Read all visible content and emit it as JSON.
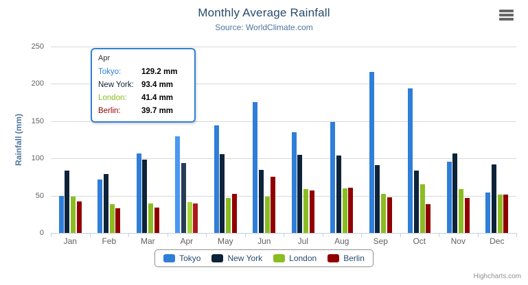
{
  "header": {
    "title": "Monthly Average Rainfall",
    "subtitle": "Source: WorldClimate.com"
  },
  "credits": {
    "label": "Highcharts.com"
  },
  "context_menu": {
    "icon": "hamburger-menu-icon"
  },
  "chart_data": {
    "type": "bar",
    "orientation": "vertical-columns",
    "title": "Monthly Average Rainfall",
    "subtitle": "Source: WorldClimate.com",
    "categories": [
      "Jan",
      "Feb",
      "Mar",
      "Apr",
      "May",
      "Jun",
      "Jul",
      "Aug",
      "Sep",
      "Oct",
      "Nov",
      "Dec"
    ],
    "series": [
      {
        "name": "Tokyo",
        "color": "#2f7ed8",
        "hover_color": "#4a98f2",
        "values": [
          49.9,
          71.5,
          106.4,
          129.2,
          144.0,
          176.0,
          135.6,
          148.5,
          216.4,
          194.1,
          95.6,
          54.4
        ]
      },
      {
        "name": "New York",
        "color": "#0d233a",
        "hover_color": "#273d54",
        "values": [
          83.6,
          78.8,
          98.5,
          93.4,
          106.0,
          84.5,
          105.0,
          104.3,
          91.2,
          83.5,
          106.6,
          92.3
        ]
      },
      {
        "name": "London",
        "color": "#8bbc21",
        "hover_color": "#a5d63b",
        "values": [
          48.9,
          38.8,
          39.3,
          41.4,
          47.0,
          48.3,
          59.0,
          59.6,
          52.4,
          65.2,
          59.3,
          51.2
        ]
      },
      {
        "name": "Berlin",
        "color": "#910000",
        "hover_color": "#ab1a1a",
        "values": [
          42.4,
          33.2,
          34.5,
          39.7,
          52.6,
          75.5,
          57.4,
          60.4,
          47.6,
          39.1,
          46.8,
          51.1
        ]
      }
    ],
    "xlabel": "",
    "ylabel": "Rainfall (mm)",
    "ylim": [
      0,
      250
    ],
    "yticks": [
      0,
      50,
      100,
      150,
      200,
      250
    ],
    "grid": true,
    "legend_position": "bottom",
    "hovered_category": "Apr",
    "hovered_index": 3,
    "colors_meta": {
      "gridline": "#d8d8d8",
      "axis_line": "#c0d0e0",
      "axis_label": "#606060",
      "title": "#274b6d",
      "subtitle": "#4d759e"
    }
  },
  "tooltip": {
    "header": "Apr",
    "border_color": "#2f7ed8",
    "rows": [
      {
        "label": "Tokyo:",
        "value": "129.2 mm",
        "color": "#2f7ed8"
      },
      {
        "label": "New York:",
        "value": "93.4 mm",
        "color": "#0d233a"
      },
      {
        "label": "London:",
        "value": "41.4 mm",
        "color": "#8bbc21"
      },
      {
        "label": "Berlin:",
        "value": "39.7 mm",
        "color": "#910000"
      }
    ]
  }
}
